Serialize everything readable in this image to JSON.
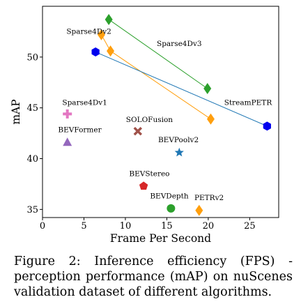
{
  "chart_data": {
    "type": "scatter",
    "xlabel": "Frame Per Second",
    "ylabel": "mAP",
    "xlim": [
      0,
      28.5
    ],
    "ylim": [
      34.2,
      55
    ],
    "x_ticks": [
      0,
      5,
      10,
      15,
      20,
      25
    ],
    "y_ticks": [
      35,
      40,
      45,
      50
    ],
    "grid": false,
    "points": [
      {
        "label": "Sparse4Dv1",
        "x": 3.0,
        "y": 44.4,
        "marker": "plus",
        "color": "#e377c2"
      },
      {
        "label": "BEVFormer",
        "x": 3.0,
        "y": 41.6,
        "marker": "triangle",
        "color": "#9467bd"
      },
      {
        "label": "SOLOFusion",
        "x": 11.5,
        "y": 42.7,
        "marker": "x",
        "color": "#a0524a"
      },
      {
        "label": "BEVPoolv2",
        "x": 16.5,
        "y": 40.6,
        "marker": "star",
        "color": "#1f77b4"
      },
      {
        "label": "BEVStereo",
        "x": 12.2,
        "y": 37.3,
        "marker": "pentagon",
        "color": "#d62728"
      },
      {
        "label": "BEVDepth",
        "x": 15.5,
        "y": 35.1,
        "marker": "circle",
        "color": "#2ca02c"
      },
      {
        "label": "PETRv2",
        "x": 18.9,
        "y": 34.9,
        "marker": "diamond",
        "color": "#ff9f0e"
      }
    ],
    "series": [
      {
        "name": "Sparse4Dv3",
        "color": "#2ca02c",
        "marker": "diamond",
        "x": [
          8.0,
          19.9
        ],
        "y": [
          53.7,
          46.9
        ]
      },
      {
        "name": "Sparse4Dv2",
        "color": "#ff9f0e",
        "marker": "diamond",
        "x": [
          7.1,
          8.2,
          20.3
        ],
        "y": [
          52.2,
          50.6,
          43.9
        ]
      },
      {
        "name": "StreamPETR",
        "color": "#0000ee",
        "line_color": "#1f77b4",
        "marker": "hexagon",
        "x": [
          6.4,
          27.1
        ],
        "y": [
          50.5,
          43.2
        ]
      }
    ],
    "annotations": [
      {
        "text": "Sparse4Dv2",
        "x": 5.6,
        "y": 52.3
      },
      {
        "text": "Sparse4Dv3",
        "x": 16.5,
        "y": 51.1
      },
      {
        "text": "StreamPETR",
        "x": 24.8,
        "y": 45.3
      },
      {
        "text": "Sparse4Dv1",
        "x": 5.1,
        "y": 45.3
      },
      {
        "text": "BEVFormer",
        "x": 4.5,
        "y": 42.6
      },
      {
        "text": "SOLOFusion",
        "x": 12.9,
        "y": 43.6
      },
      {
        "text": "BEVPoolv2",
        "x": 16.4,
        "y": 41.6
      },
      {
        "text": "BEVStereo",
        "x": 12.9,
        "y": 38.3
      },
      {
        "text": "BEVDepth",
        "x": 15.3,
        "y": 36.1
      },
      {
        "text": "PETRv2",
        "x": 20.1,
        "y": 35.9
      }
    ]
  },
  "caption": "Figure 2: Inference efficiency (FPS) - perception performance (mAP) on nuScenes validation dataset of different algorithms."
}
